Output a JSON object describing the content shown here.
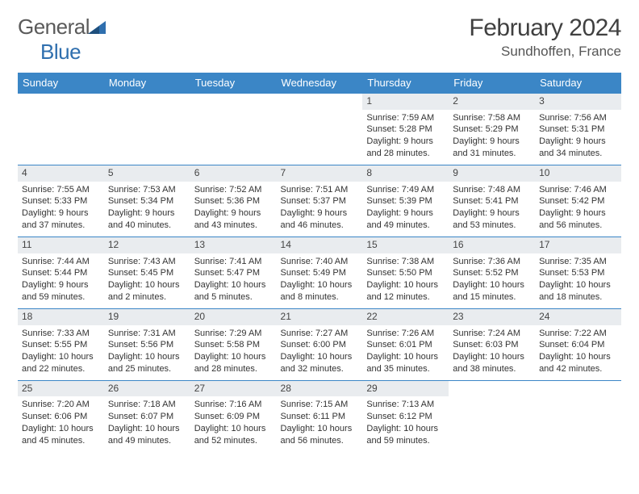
{
  "brand": {
    "part1": "General",
    "part2": "Blue"
  },
  "title": "February 2024",
  "location": "Sundhoffen, France",
  "colors": {
    "header_bg": "#3b86c6",
    "header_text": "#ffffff",
    "daynum_bg": "#e9ecef",
    "row_border": "#3b86c6",
    "logo_gray": "#5a5a5a",
    "logo_blue": "#2f6fae"
  },
  "weekdays": [
    "Sunday",
    "Monday",
    "Tuesday",
    "Wednesday",
    "Thursday",
    "Friday",
    "Saturday"
  ],
  "weeks": [
    [
      null,
      null,
      null,
      null,
      {
        "n": "1",
        "sunrise": "7:59 AM",
        "sunset": "5:28 PM",
        "daylight": "9 hours and 28 minutes."
      },
      {
        "n": "2",
        "sunrise": "7:58 AM",
        "sunset": "5:29 PM",
        "daylight": "9 hours and 31 minutes."
      },
      {
        "n": "3",
        "sunrise": "7:56 AM",
        "sunset": "5:31 PM",
        "daylight": "9 hours and 34 minutes."
      }
    ],
    [
      {
        "n": "4",
        "sunrise": "7:55 AM",
        "sunset": "5:33 PM",
        "daylight": "9 hours and 37 minutes."
      },
      {
        "n": "5",
        "sunrise": "7:53 AM",
        "sunset": "5:34 PM",
        "daylight": "9 hours and 40 minutes."
      },
      {
        "n": "6",
        "sunrise": "7:52 AM",
        "sunset": "5:36 PM",
        "daylight": "9 hours and 43 minutes."
      },
      {
        "n": "7",
        "sunrise": "7:51 AM",
        "sunset": "5:37 PM",
        "daylight": "9 hours and 46 minutes."
      },
      {
        "n": "8",
        "sunrise": "7:49 AM",
        "sunset": "5:39 PM",
        "daylight": "9 hours and 49 minutes."
      },
      {
        "n": "9",
        "sunrise": "7:48 AM",
        "sunset": "5:41 PM",
        "daylight": "9 hours and 53 minutes."
      },
      {
        "n": "10",
        "sunrise": "7:46 AM",
        "sunset": "5:42 PM",
        "daylight": "9 hours and 56 minutes."
      }
    ],
    [
      {
        "n": "11",
        "sunrise": "7:44 AM",
        "sunset": "5:44 PM",
        "daylight": "9 hours and 59 minutes."
      },
      {
        "n": "12",
        "sunrise": "7:43 AM",
        "sunset": "5:45 PM",
        "daylight": "10 hours and 2 minutes."
      },
      {
        "n": "13",
        "sunrise": "7:41 AM",
        "sunset": "5:47 PM",
        "daylight": "10 hours and 5 minutes."
      },
      {
        "n": "14",
        "sunrise": "7:40 AM",
        "sunset": "5:49 PM",
        "daylight": "10 hours and 8 minutes."
      },
      {
        "n": "15",
        "sunrise": "7:38 AM",
        "sunset": "5:50 PM",
        "daylight": "10 hours and 12 minutes."
      },
      {
        "n": "16",
        "sunrise": "7:36 AM",
        "sunset": "5:52 PM",
        "daylight": "10 hours and 15 minutes."
      },
      {
        "n": "17",
        "sunrise": "7:35 AM",
        "sunset": "5:53 PM",
        "daylight": "10 hours and 18 minutes."
      }
    ],
    [
      {
        "n": "18",
        "sunrise": "7:33 AM",
        "sunset": "5:55 PM",
        "daylight": "10 hours and 22 minutes."
      },
      {
        "n": "19",
        "sunrise": "7:31 AM",
        "sunset": "5:56 PM",
        "daylight": "10 hours and 25 minutes."
      },
      {
        "n": "20",
        "sunrise": "7:29 AM",
        "sunset": "5:58 PM",
        "daylight": "10 hours and 28 minutes."
      },
      {
        "n": "21",
        "sunrise": "7:27 AM",
        "sunset": "6:00 PM",
        "daylight": "10 hours and 32 minutes."
      },
      {
        "n": "22",
        "sunrise": "7:26 AM",
        "sunset": "6:01 PM",
        "daylight": "10 hours and 35 minutes."
      },
      {
        "n": "23",
        "sunrise": "7:24 AM",
        "sunset": "6:03 PM",
        "daylight": "10 hours and 38 minutes."
      },
      {
        "n": "24",
        "sunrise": "7:22 AM",
        "sunset": "6:04 PM",
        "daylight": "10 hours and 42 minutes."
      }
    ],
    [
      {
        "n": "25",
        "sunrise": "7:20 AM",
        "sunset": "6:06 PM",
        "daylight": "10 hours and 45 minutes."
      },
      {
        "n": "26",
        "sunrise": "7:18 AM",
        "sunset": "6:07 PM",
        "daylight": "10 hours and 49 minutes."
      },
      {
        "n": "27",
        "sunrise": "7:16 AM",
        "sunset": "6:09 PM",
        "daylight": "10 hours and 52 minutes."
      },
      {
        "n": "28",
        "sunrise": "7:15 AM",
        "sunset": "6:11 PM",
        "daylight": "10 hours and 56 minutes."
      },
      {
        "n": "29",
        "sunrise": "7:13 AM",
        "sunset": "6:12 PM",
        "daylight": "10 hours and 59 minutes."
      },
      null,
      null
    ]
  ],
  "labels": {
    "sunrise": "Sunrise:",
    "sunset": "Sunset:",
    "daylight": "Daylight:"
  }
}
